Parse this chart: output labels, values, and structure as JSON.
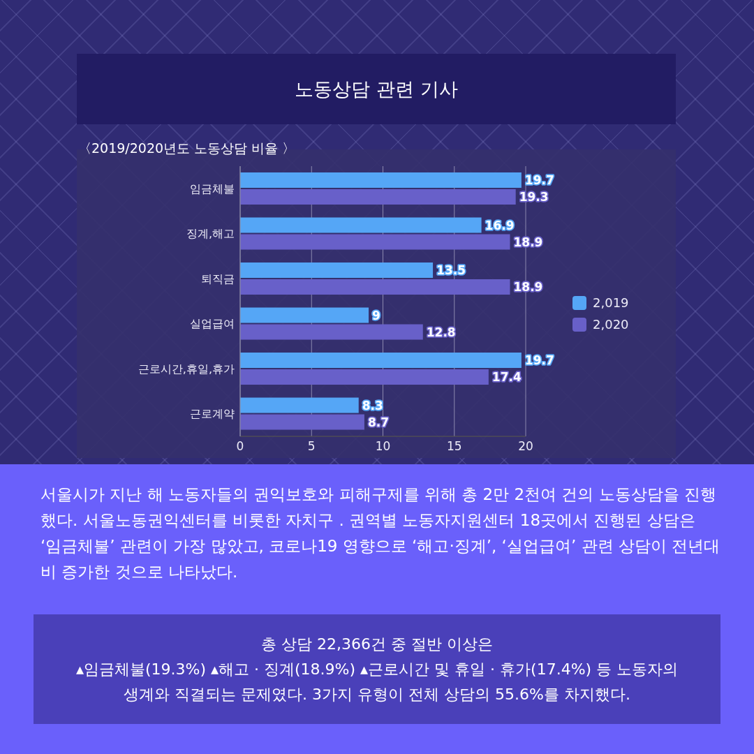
{
  "chart_data": {
    "type": "bar",
    "orientation": "horizontal",
    "title": "노동상담 관련 기사",
    "subtitle": "〈2019/2020년도 노동상담 비율 〉",
    "categories": [
      "임금체불",
      "징계,해고",
      "퇴직금",
      "실업급여",
      "근로시간,휴일,휴가",
      "근로계약"
    ],
    "series": [
      {
        "name": "2,019",
        "color": "#55a6f6",
        "values": [
          19.7,
          16.9,
          13.5,
          9,
          19.7,
          8.3
        ]
      },
      {
        "name": "2,020",
        "color": "#6860c9",
        "values": [
          19.3,
          18.9,
          18.9,
          12.8,
          17.4,
          8.7
        ]
      }
    ],
    "xlim": [
      0,
      20
    ],
    "xticks": [
      0,
      5,
      10,
      15,
      20
    ],
    "grid": "x",
    "legend": "right",
    "data_labels": true,
    "annotations": [
      "서울시가 지난 해 노동자들의 권익보호와 피해구제를 위해 총 2만 2천여 건의 노동상담을 진행했다. 서울노동권익센터를 비롯한 자치구 . 권역별 노동자지원센터 18곳에서 진행된 상담은 ‘임금체불’ 관련이 가장 많았고, 코로나19 영향으로 ‘해고·징계’, ‘실업급여’ 관련 상담이 전년대비 증가한 것으로 나타났다.",
      "총 상담 22,366건 중 절반 이상은\n▴임금체불(19.3%) ▴해고 · 징계(18.9%) ▴근로시간 및 휴일 · 휴가(17.4%) 등 노동자의\n생계와 직결되는 문제였다. 3가지 유형이 전체 상담의 55.6%를 차지했다."
    ]
  }
}
